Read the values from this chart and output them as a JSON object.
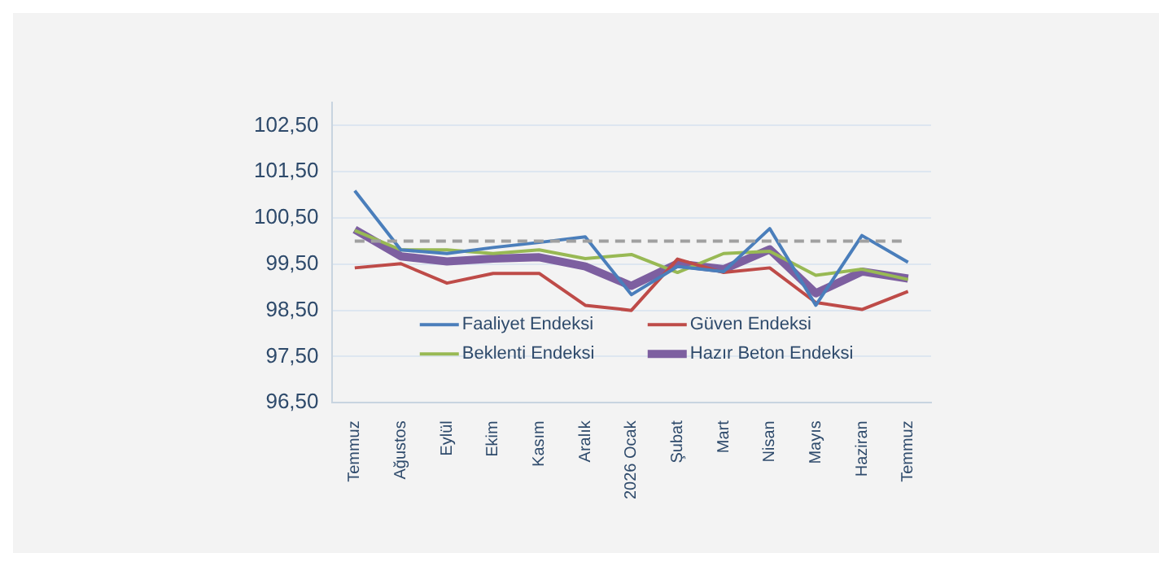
{
  "chart_data": {
    "type": "line",
    "categories": [
      "Temmuz",
      "Ağustos",
      "Eylül",
      "Ekim",
      "Kasım",
      "Aralık",
      "2026 Ocak",
      "Şubat",
      "Mart",
      "Nisan",
      "Mayıs",
      "Haziran",
      "Temmuz"
    ],
    "series": [
      {
        "name": "Faaliyet Endeksi",
        "color": "#4a7ebb",
        "values": [
          101.09,
          99.81,
          99.73,
          99.86,
          99.97,
          100.09,
          98.84,
          99.45,
          99.34,
          100.27,
          98.61,
          100.12,
          99.54
        ]
      },
      {
        "name": "Güven Endeksi",
        "color": "#be4b48",
        "values": [
          99.42,
          99.51,
          99.09,
          99.3,
          99.3,
          98.61,
          98.5,
          99.61,
          99.32,
          99.42,
          98.67,
          98.52,
          98.91
        ]
      },
      {
        "name": "Beklenti Endeksi",
        "color": "#98b954",
        "values": [
          100.23,
          99.81,
          99.81,
          99.73,
          99.81,
          99.62,
          99.71,
          99.32,
          99.73,
          99.78,
          99.26,
          99.39,
          99.17
        ]
      },
      {
        "name": "Hazır Beton Endeksi",
        "color": "#7d5fa0",
        "values": [
          100.25,
          99.67,
          99.56,
          99.62,
          99.65,
          99.45,
          99.03,
          99.51,
          99.39,
          99.82,
          98.87,
          99.34,
          99.19
        ]
      }
    ],
    "ylim": [
      96.5,
      103
    ],
    "yticks": [
      {
        "value": 96.5,
        "label": "96,50"
      },
      {
        "value": 97.5,
        "label": "97,50"
      },
      {
        "value": 98.5,
        "label": "98,50"
      },
      {
        "value": 99.5,
        "label": "99,50"
      },
      {
        "value": 100.5,
        "label": "100,50"
      },
      {
        "value": 101.5,
        "label": "101,50"
      },
      {
        "value": 102.5,
        "label": "102,50"
      }
    ],
    "ref_lines": [
      {
        "axis": "y",
        "value": 100,
        "color": "#a0a0a0",
        "line_style": "dashed"
      }
    ],
    "grid": "y",
    "legend": "bottom",
    "marker": "none",
    "line_style": "solid"
  }
}
